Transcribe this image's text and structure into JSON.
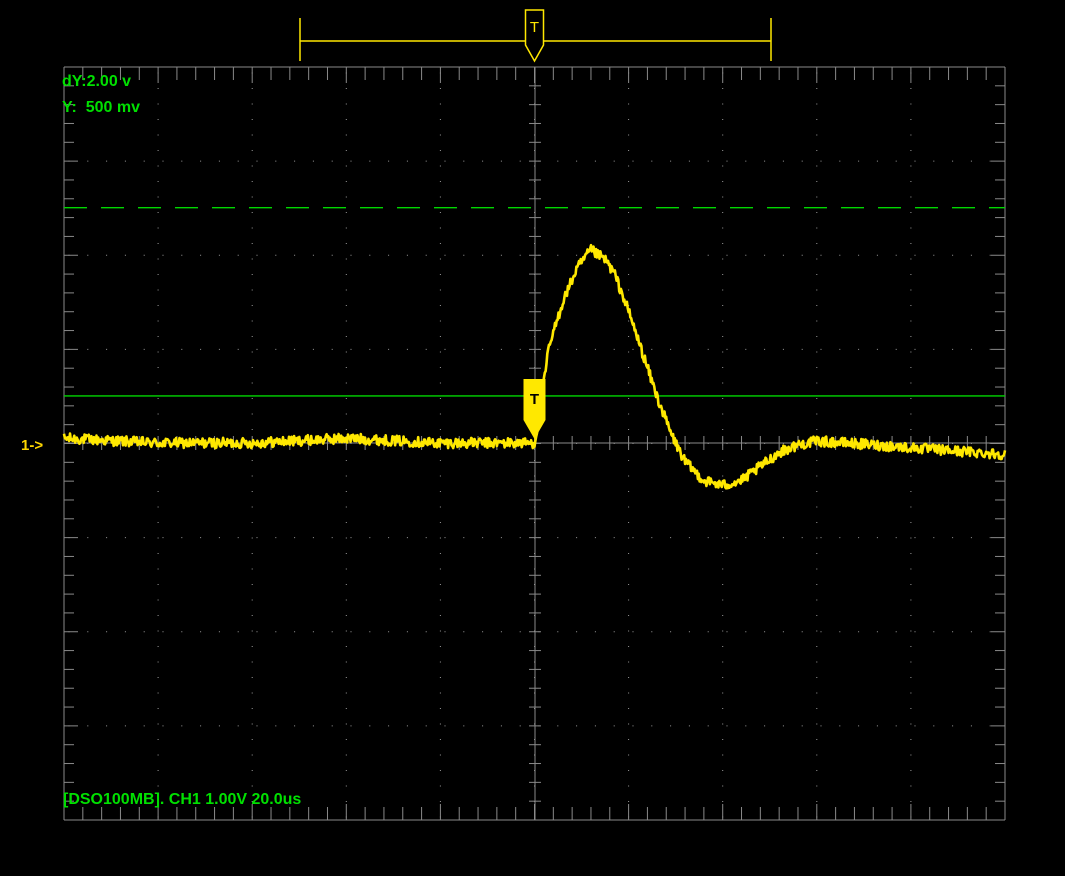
{
  "colors": {
    "background": "#000000",
    "graticule": "#8a8a8a",
    "grid_dots": "#9a9a9a",
    "trace": "#ffe800",
    "cursor_lines": "#00d800",
    "readout_text": "#00e000",
    "trigger_bar": "#ffe800"
  },
  "icons": {
    "trigger_bar_marker": "trigger-marker-icon",
    "trigger_level_marker": "trigger-level-icon"
  },
  "top_bar": {
    "trigger_label": "T"
  },
  "readouts": {
    "dy": "dY:2.00 v",
    "y": "Y:  500 mv"
  },
  "channel": {
    "marker": "1->",
    "trigger_label": "T"
  },
  "status": {
    "text": "[DSO100MB]. CH1 1.00V 20.0us"
  },
  "cursors": {
    "dashed_level_div": 2.5,
    "solid_level_div": 0.5
  },
  "chart_data": {
    "type": "line",
    "x_divisions": 10,
    "y_divisions": 8,
    "x_unit_per_div": "20.0us",
    "y_unit_per_div": "1.00V",
    "xlim": [
      0,
      10
    ],
    "ylim": [
      -4,
      4
    ],
    "trigger_position_div": 5.0,
    "series": [
      {
        "x": [
          0,
          1,
          2,
          3,
          4,
          4.6,
          5.0,
          5.05,
          5.15,
          5.3,
          5.45,
          5.6,
          5.75,
          5.85,
          6.0,
          6.15,
          6.3,
          6.45,
          6.6,
          6.8,
          7.0,
          7.2,
          7.4,
          7.6,
          7.8,
          8.0,
          8.3,
          8.6,
          9.0,
          9.4,
          10.0
        ],
        "y": [
          0.05,
          0.0,
          0.0,
          0.05,
          0.0,
          0.0,
          0.0,
          0.28,
          1.0,
          1.5,
          1.85,
          2.05,
          1.95,
          1.8,
          1.4,
          0.95,
          0.5,
          0.1,
          -0.2,
          -0.4,
          -0.45,
          -0.4,
          -0.25,
          -0.1,
          -0.02,
          0.02,
          0.0,
          -0.02,
          -0.05,
          -0.08,
          -0.12
        ]
      }
    ]
  }
}
